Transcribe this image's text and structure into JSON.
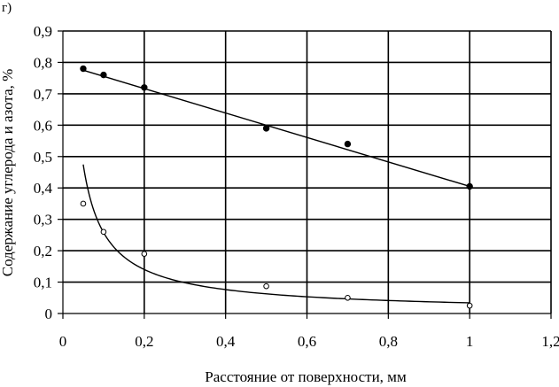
{
  "corner_label": "г)",
  "chart_data": {
    "type": "scatter",
    "title": "",
    "xlabel": "Расстояние от  поверхности, мм",
    "ylabel": "Содержание углерода и азота, %",
    "xlim": [
      0,
      1.2
    ],
    "ylim": [
      0,
      0.9
    ],
    "xticks": [
      "0",
      "0,2",
      "0,4",
      "0,6",
      "0,8",
      "1",
      "1,2"
    ],
    "yticks": [
      "0",
      "0,1",
      "0,2",
      "0,3",
      "0,4",
      "0,5",
      "0,6",
      "0,7",
      "0,8",
      "0,9"
    ],
    "xtick_values": [
      0,
      0.2,
      0.4,
      0.6,
      0.8,
      1.0,
      1.2
    ],
    "ytick_values": [
      0,
      0.1,
      0.2,
      0.3,
      0.4,
      0.5,
      0.6,
      0.7,
      0.8,
      0.9
    ],
    "grid": true,
    "series": [
      {
        "marker": "filled-circle",
        "x": [
          0.05,
          0.1,
          0.2,
          0.5,
          0.7,
          1.0
        ],
        "y": [
          0.78,
          0.76,
          0.72,
          0.59,
          0.54,
          0.405
        ],
        "trendline": {
          "kind": "linear",
          "x": [
            0.05,
            1.0
          ],
          "y": [
            0.775,
            0.405
          ]
        }
      },
      {
        "marker": "open-circle",
        "x": [
          0.05,
          0.1,
          0.2,
          0.5,
          0.7,
          1.0
        ],
        "y": [
          0.35,
          0.26,
          0.19,
          0.087,
          0.05,
          0.025
        ],
        "trendline": {
          "kind": "power",
          "coef": 0.034,
          "exponent": -0.88,
          "x_from": 0.05,
          "x_to": 1.0
        }
      }
    ],
    "colors": {
      "line": "#000000",
      "grid": "#000000",
      "background": "#ffffff"
    }
  }
}
